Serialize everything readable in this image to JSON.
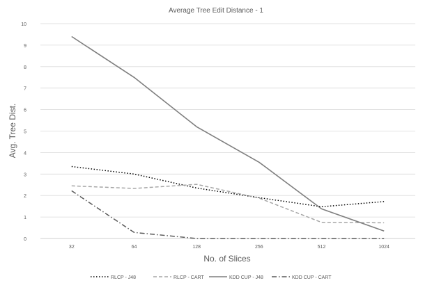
{
  "chart_data": {
    "type": "line",
    "title": "Average Tree Edit Distance - 1",
    "xlabel": "No. of Slices",
    "ylabel": "Avg. Tree Dist.",
    "categories": [
      "32",
      "64",
      "128",
      "256",
      "512",
      "1024"
    ],
    "ylim": [
      0,
      10
    ],
    "yticks": [
      "0",
      "1",
      "2",
      "3",
      "4",
      "5",
      "6",
      "7",
      "8",
      "9",
      "10"
    ],
    "grid": true,
    "legend_position": "bottom",
    "series": [
      {
        "name": "RLCP - J48",
        "values": [
          3.35,
          3.0,
          2.35,
          1.9,
          1.48,
          1.72
        ],
        "color": "#000000",
        "dash": "dotted"
      },
      {
        "name": "RLCP - CART",
        "values": [
          2.45,
          2.33,
          2.52,
          1.88,
          0.75,
          0.73
        ],
        "color": "#a6a6a6",
        "dash": "dashed"
      },
      {
        "name": "KDD CUP - J48",
        "values": [
          9.4,
          7.5,
          5.2,
          3.55,
          1.38,
          0.35
        ],
        "color": "#7f7f7f",
        "dash": "solid"
      },
      {
        "name": "KDD CUP - CART",
        "values": [
          2.22,
          0.28,
          0.0,
          0.0,
          0.0,
          0.0
        ],
        "color": "#595959",
        "dash": "dashdot"
      }
    ]
  }
}
